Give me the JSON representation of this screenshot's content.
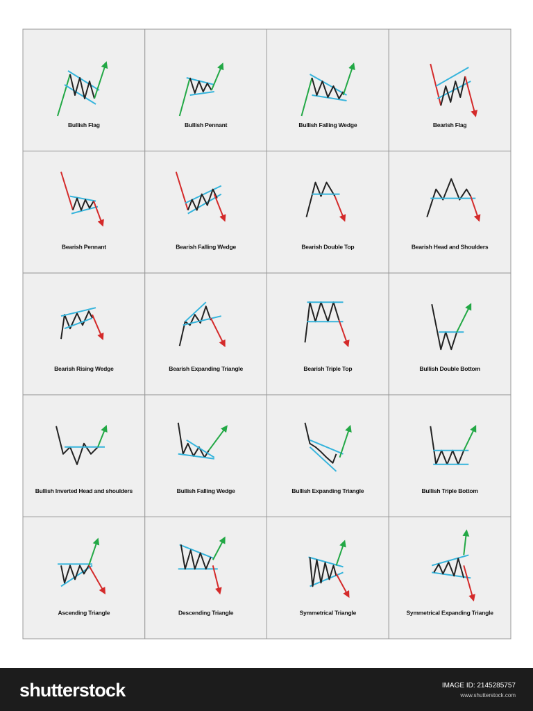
{
  "grid": {
    "labels": [
      "Bullish Flag",
      "Bullish Pennant",
      "Bullish Falling Wedge",
      "Bearish Flag",
      "Bearish Pennant",
      "Bearish Falling Wedge",
      "Bearish Double Top",
      "Bearish Head and Shoulders",
      "Bearish Rising Wedge",
      "Bearish Expanding Triangle",
      "Bearish Triple Top",
      "Bullish Double Bottom",
      "Bullish Inverted Head and shoulders",
      "Bullish Falling Wedge",
      "Bullish Expanding Triangle",
      "Bullish Triple Bottom",
      "Ascending Triangle",
      "Descending Triangle",
      "Symmetrical Triangle",
      "Symmetrical Expanding Triangle"
    ]
  },
  "footer": {
    "logo": "shutterstock",
    "image_id": "IMAGE ID: 2145285757",
    "site": "www.shutterstock.com"
  }
}
